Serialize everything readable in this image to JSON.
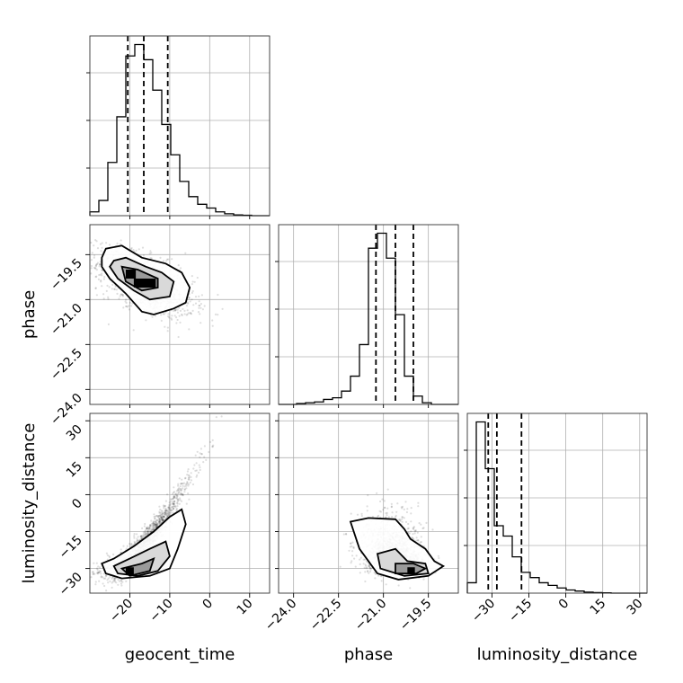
{
  "chart_data": {
    "type": "corner",
    "title": "",
    "parameters": [
      "geocent_time",
      "phase",
      "luminosity_distance"
    ],
    "grid": true,
    "quantile_lines": "dashed",
    "axes": {
      "geocent_time": {
        "range": [
          -30,
          15
        ],
        "ticks": [
          -20,
          -10,
          0,
          10
        ],
        "tick_labels": [
          "−20",
          "−10",
          "0",
          "10"
        ]
      },
      "phase": {
        "range": [
          -24.5,
          -18.5
        ],
        "ticks": [
          -24.0,
          -22.5,
          -21.0,
          -19.5
        ],
        "tick_labels": [
          "−24.0",
          "−22.5",
          "−21.0",
          "−19.5"
        ]
      },
      "luminosity_distance": {
        "range": [
          -40,
          33
        ],
        "ticks": [
          -30,
          -15,
          0,
          15,
          30
        ],
        "tick_labels": [
          "−30",
          "−15",
          "0",
          "15",
          "30"
        ]
      }
    },
    "histograms": [
      {
        "parameter": "geocent_time",
        "bin_edges": [
          -30,
          -27.75,
          -25.5,
          -23.25,
          -21,
          -18.75,
          -16.5,
          -14.25,
          -12,
          -9.75,
          -7.5,
          -5.25,
          -3,
          -0.75,
          1.5,
          3.75,
          6,
          8.25,
          10.5,
          12.75,
          15
        ],
        "counts": [
          1,
          4,
          14,
          26,
          42,
          45,
          41,
          33,
          24,
          16,
          9,
          5,
          3,
          2,
          1,
          0.5,
          0.2,
          0.1,
          0,
          0
        ],
        "quantiles": [
          -20.5,
          -16.5,
          -10.5
        ]
      },
      {
        "parameter": "phase",
        "bin_edges": [
          -24.5,
          -24.2,
          -23.9,
          -23.6,
          -23.3,
          -23.0,
          -22.7,
          -22.4,
          -22.1,
          -21.8,
          -21.5,
          -21.2,
          -20.9,
          -20.6,
          -20.3,
          -20.0,
          -19.7,
          -19.4,
          -19.1,
          -18.8,
          -18.5
        ],
        "counts": [
          0,
          0,
          0.5,
          1,
          1.5,
          3,
          4,
          8,
          17,
          36,
          94,
          103,
          88,
          54,
          17,
          5,
          1,
          0,
          0,
          0
        ],
        "quantiles": [
          -21.25,
          -20.6,
          -20.0
        ]
      },
      {
        "parameter": "luminosity_distance",
        "bin_edges": [
          -40,
          -36.35,
          -32.7,
          -29.05,
          -25.4,
          -21.75,
          -18.1,
          -14.45,
          -10.8,
          -7.15,
          -3.5,
          0.15,
          3.8,
          7.45,
          11.1,
          14.75,
          18.4,
          22.05,
          25.7,
          29.35,
          33
        ],
        "counts": [
          2,
          33,
          24,
          13,
          11,
          7,
          4,
          3,
          2,
          1.5,
          1,
          0.6,
          0.4,
          0.2,
          0.1,
          0.05,
          0,
          0,
          0,
          0
        ],
        "quantiles": [
          -31.5,
          -28,
          -18
        ]
      }
    ],
    "scatter_2d": [
      {
        "x_param": "geocent_time",
        "y_param": "phase",
        "density_peak": {
          "x": -16.5,
          "y": -20.4
        },
        "contours_x_extent": [
          -27,
          -5
        ],
        "contours_y_extent": [
          -21.6,
          -19.2
        ]
      },
      {
        "x_param": "geocent_time",
        "y_param": "luminosity_distance",
        "density_peak": {
          "x": -18,
          "y": -31
        },
        "contours_x_extent": [
          -27,
          -6
        ],
        "contours_y_extent": [
          -34,
          -8
        ]
      },
      {
        "x_param": "phase",
        "y_param": "luminosity_distance",
        "density_peak": {
          "x": -20.0,
          "y": -30
        },
        "contours_x_extent": [
          -22.2,
          -19.0
        ],
        "contours_y_extent": [
          -34,
          -10
        ]
      }
    ]
  }
}
